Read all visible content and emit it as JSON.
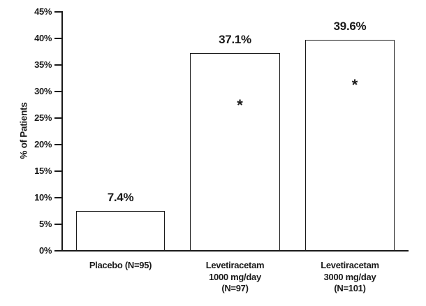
{
  "chart_data": {
    "type": "bar",
    "title": "",
    "xlabel": "",
    "ylabel": "% of Patients",
    "ylim": [
      0,
      45
    ],
    "ytick_step": 5,
    "ytick_labels": [
      "45%",
      "40%",
      "35%",
      "30%",
      "25%",
      "20%",
      "15%",
      "10%",
      "5%",
      "0%"
    ],
    "grid": false,
    "legend": false,
    "bar_fill": "#ffffff",
    "bar_border": "#1a1a1a",
    "categories": [
      [
        "Placebo (N=95)"
      ],
      [
        "Levetiracetam",
        "1000 mg/day",
        "(N=97)"
      ],
      [
        "Levetiracetam",
        "3000 mg/day",
        "(N=101)"
      ]
    ],
    "values": [
      7.4,
      37.1,
      39.6
    ],
    "value_labels": [
      "7.4%",
      "37.1%",
      "39.6%"
    ],
    "annotations": [
      "",
      "*",
      "*"
    ]
  }
}
